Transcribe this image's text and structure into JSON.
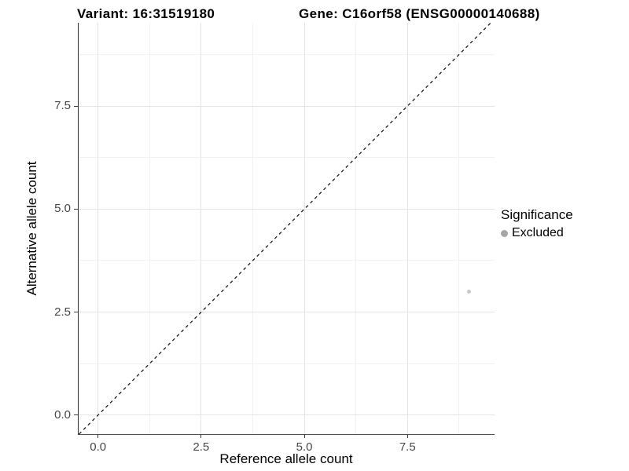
{
  "header": {
    "variant_title": "Variant: 16:31519180",
    "gene_title": "Gene: C16orf58 (ENSG00000140688)"
  },
  "chart_data": {
    "type": "scatter",
    "xlabel": "Reference allele count",
    "ylabel": "Alternative allele count",
    "xlim": [
      -0.47,
      9.61
    ],
    "ylim": [
      -0.46,
      9.52
    ],
    "major_ticks": {
      "x": [
        0,
        2.5,
        5,
        7.5
      ],
      "y": [
        0,
        2.5,
        5,
        7.5
      ]
    },
    "tick_labels": {
      "x": [
        "0.0",
        "2.5",
        "5.0",
        "7.5"
      ],
      "y": [
        "0.0",
        "2.5",
        "5.0",
        "7.5"
      ]
    },
    "minor_ticks": {
      "x": [
        1.25,
        3.75,
        6.25,
        8.75
      ],
      "y": [
        1.25,
        3.75,
        6.25,
        8.75
      ]
    },
    "grid": "major+minor",
    "points": [
      {
        "x": 9,
        "y": 3,
        "series": "Excluded"
      }
    ],
    "series": [
      {
        "name": "Excluded",
        "color": "#c8c8c8"
      }
    ],
    "identity_line": {
      "equation": "y = x",
      "style": "dashed",
      "color": "#1a1a1a"
    },
    "legend": {
      "title": "Significance",
      "position": "right",
      "entries": [
        {
          "label": "Excluded",
          "color": "#a6a6a6"
        }
      ]
    }
  },
  "colors": {
    "background": "#ffffff",
    "grid_major": "#e4e4e4",
    "grid_minor": "#f2f2f2",
    "axis_line": "#3c3c3c",
    "tick_text": "#474747",
    "title_text": "#000000",
    "point": "#c8c8c8",
    "legend_point": "#a6a6a6"
  }
}
